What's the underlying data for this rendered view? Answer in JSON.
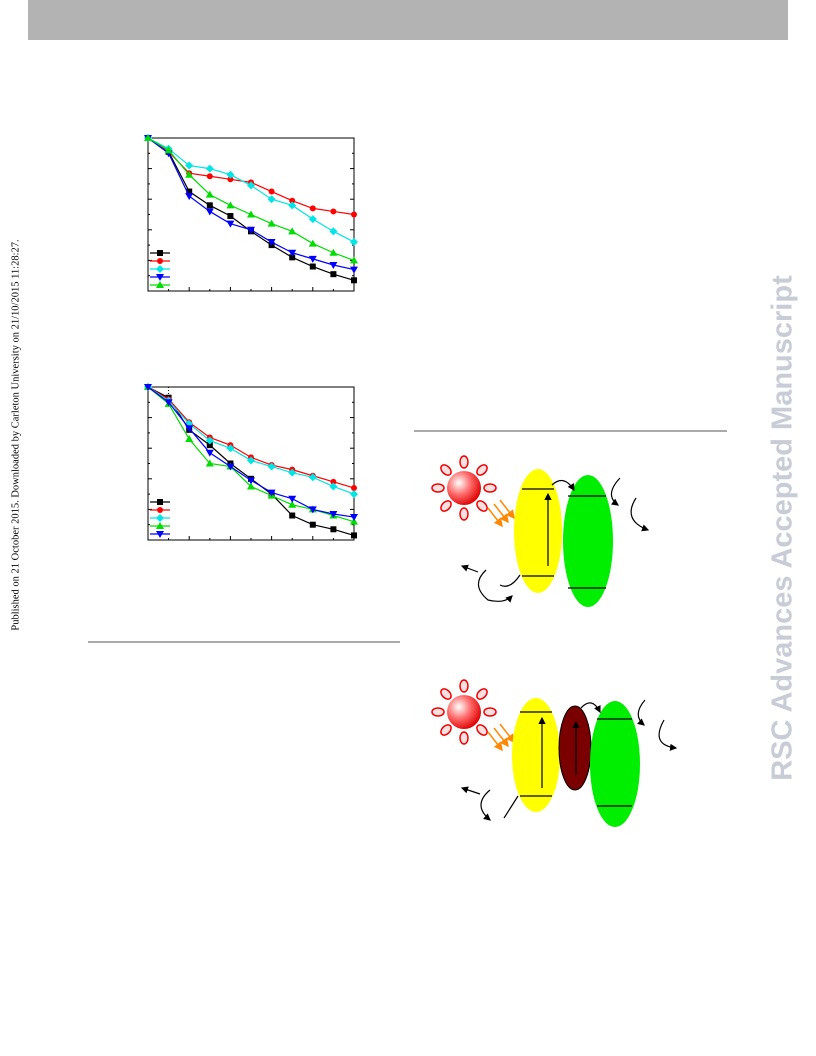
{
  "document": {
    "side_note": "Published on 21 October 2015. Downloaded by Carleton University on 21/10/2015 11:28:27.",
    "watermark": "RSC Advances Accepted Manuscript"
  },
  "chart_data": [
    {
      "type": "line",
      "x": [
        0,
        1,
        2,
        3,
        4,
        5,
        6,
        7,
        8,
        9,
        10
      ],
      "xlim": [
        0,
        10
      ],
      "ylim": [
        0,
        1
      ],
      "series": [
        {
          "color": "#000000",
          "marker": "square",
          "values": [
            1.0,
            0.91,
            0.65,
            0.56,
            0.49,
            0.39,
            0.3,
            0.22,
            0.16,
            0.11,
            0.07
          ]
        },
        {
          "color": "#ff0000",
          "marker": "circle",
          "values": [
            1.0,
            0.91,
            0.77,
            0.75,
            0.73,
            0.71,
            0.65,
            0.59,
            0.54,
            0.52,
            0.5
          ]
        },
        {
          "color": "#00e5e5",
          "marker": "diamond",
          "values": [
            1.0,
            0.93,
            0.82,
            0.8,
            0.76,
            0.69,
            0.6,
            0.56,
            0.47,
            0.39,
            0.32
          ]
        },
        {
          "color": "#0000ff",
          "marker": "triangle-down",
          "values": [
            1.0,
            0.9,
            0.62,
            0.52,
            0.44,
            0.4,
            0.32,
            0.25,
            0.21,
            0.17,
            0.14
          ]
        },
        {
          "color": "#00dd00",
          "marker": "triangle-up",
          "values": [
            1.0,
            0.92,
            0.76,
            0.63,
            0.56,
            0.5,
            0.44,
            0.39,
            0.31,
            0.25,
            0.2
          ]
        }
      ]
    },
    {
      "type": "line",
      "x": [
        0,
        1,
        2,
        3,
        4,
        5,
        6,
        7,
        8,
        9,
        10
      ],
      "xlim": [
        0,
        10
      ],
      "ylim": [
        0,
        1
      ],
      "series": [
        {
          "color": "#000000",
          "marker": "square",
          "values": [
            1.0,
            0.93,
            0.72,
            0.62,
            0.5,
            0.4,
            0.3,
            0.16,
            0.1,
            0.07,
            0.03
          ]
        },
        {
          "color": "#ff0000",
          "marker": "circle",
          "values": [
            1.0,
            0.92,
            0.77,
            0.67,
            0.62,
            0.54,
            0.49,
            0.46,
            0.42,
            0.38,
            0.34
          ]
        },
        {
          "color": "#00e5e5",
          "marker": "diamond",
          "values": [
            1.0,
            0.91,
            0.76,
            0.65,
            0.6,
            0.52,
            0.48,
            0.44,
            0.41,
            0.35,
            0.3
          ]
        },
        {
          "color": "#00dd00",
          "marker": "triangle-up",
          "values": [
            1.0,
            0.89,
            0.66,
            0.5,
            0.48,
            0.35,
            0.29,
            0.23,
            0.2,
            0.16,
            0.12
          ]
        },
        {
          "color": "#0000ff",
          "marker": "triangle-down",
          "values": [
            1.0,
            0.9,
            0.73,
            0.57,
            0.48,
            0.39,
            0.31,
            0.27,
            0.2,
            0.17,
            0.15
          ]
        }
      ]
    }
  ]
}
